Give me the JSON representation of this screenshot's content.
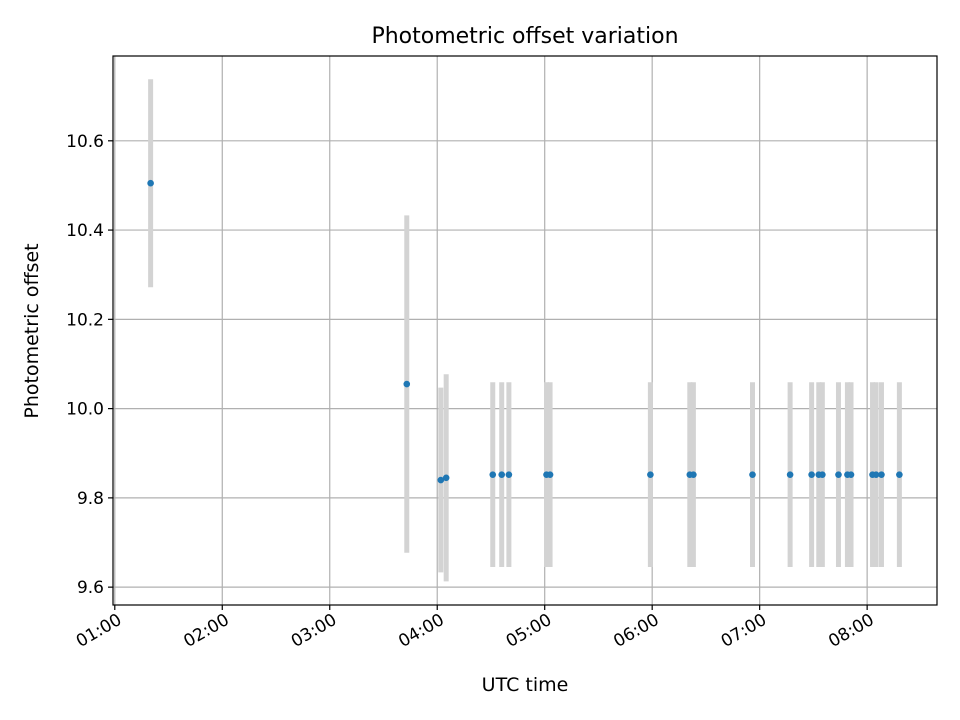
{
  "chart_data": {
    "type": "scatter",
    "title": "Photometric offset variation",
    "xlabel": "UTC time",
    "ylabel": "Photometric offset",
    "grid": true,
    "x_ticks": [
      "01:00",
      "02:00",
      "03:00",
      "04:00",
      "05:00",
      "06:00",
      "07:00",
      "08:00"
    ],
    "y_ticks": [
      "9.6",
      "9.8",
      "10.0",
      "10.2",
      "10.4",
      "10.6"
    ],
    "xlim": [
      "00:59",
      "08:39"
    ],
    "ylim": [
      9.56,
      10.79
    ],
    "colors": {
      "points": "#1f77b4",
      "errorbars": "#d3d3d3",
      "grid": "#b0b0b0"
    },
    "series": [
      {
        "x": [
          "01:20",
          "03:43",
          "04:02",
          "04:05",
          "04:31",
          "04:36",
          "04:40",
          "05:01",
          "05:03",
          "05:59",
          "06:21",
          "06:23",
          "06:56",
          "07:17",
          "07:29",
          "07:33",
          "07:35",
          "07:44",
          "07:49",
          "07:51",
          "08:03",
          "08:05",
          "08:08",
          "08:18"
        ],
        "y": [
          10.505,
          10.055,
          9.84,
          9.845,
          9.852,
          9.852,
          9.852,
          9.852,
          9.852,
          9.852,
          9.852,
          9.852,
          9.852,
          9.852,
          9.852,
          9.852,
          9.852,
          9.852,
          9.852,
          9.852,
          9.852,
          9.852,
          9.852,
          9.852
        ],
        "error": [
          0.233,
          0.378,
          0.207,
          0.232,
          0.207,
          0.207,
          0.207,
          0.207,
          0.207,
          0.207,
          0.207,
          0.207,
          0.207,
          0.207,
          0.207,
          0.207,
          0.207,
          0.207,
          0.207,
          0.207,
          0.207,
          0.207,
          0.207,
          0.207
        ]
      }
    ]
  }
}
